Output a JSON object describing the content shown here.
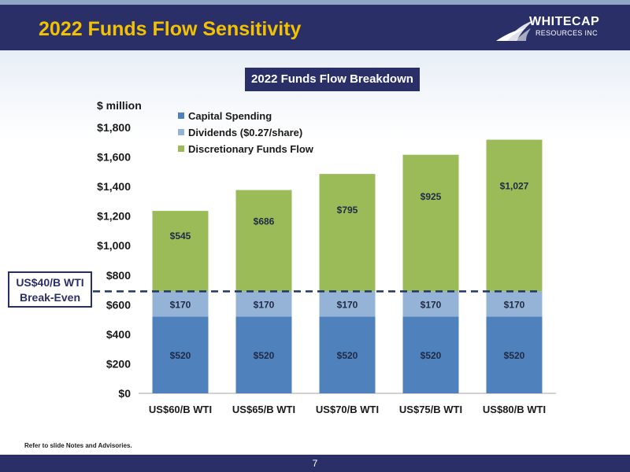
{
  "slide": {
    "title": "2022 Funds Flow Sensitivity",
    "logo_line1": "WHITECAP",
    "logo_line2": "RESOURCES INC",
    "callout_line1": "US$40/B WTI",
    "callout_line2": "Break-Even",
    "footnote": "Refer to slide Notes and Advisories.",
    "page_number": "7"
  },
  "colors": {
    "header": "#2b2f68",
    "title": "#f2c200",
    "capital": "#4f81bd",
    "dividends": "#95b3d7",
    "discretionary": "#9bbb59",
    "breakeven_line": "#1f3864"
  },
  "chart_data": {
    "type": "bar",
    "stacked": true,
    "title": "2022 Funds Flow Breakdown",
    "ylabel": "$ million",
    "xlabel": "",
    "ylim": [
      0,
      1800
    ],
    "yticks": [
      0,
      200,
      400,
      600,
      800,
      1000,
      1200,
      1400,
      1600,
      1800
    ],
    "ytick_labels": [
      "$0",
      "$200",
      "$400",
      "$600",
      "$800",
      "$1,000",
      "$1,200",
      "$1,400",
      "$1,600",
      "$1,800"
    ],
    "categories": [
      "US$60/B WTI",
      "US$65/B WTI",
      "US$70/B WTI",
      "US$75/B WTI",
      "US$80/B WTI"
    ],
    "series": [
      {
        "name": "Capital Spending",
        "values": [
          520,
          520,
          520,
          520,
          520
        ],
        "labels": [
          "$520",
          "$520",
          "$520",
          "$520",
          "$520"
        ],
        "color": "#4f81bd"
      },
      {
        "name": "Dividends ($0.27/share)",
        "values": [
          170,
          170,
          170,
          170,
          170
        ],
        "labels": [
          "$170",
          "$170",
          "$170",
          "$170",
          "$170"
        ],
        "color": "#95b3d7"
      },
      {
        "name": "Discretionary Funds Flow",
        "values": [
          545,
          686,
          795,
          925,
          1027
        ],
        "labels": [
          "$545",
          "$686",
          "$795",
          "$925",
          "$1,027"
        ],
        "color": "#9bbb59"
      }
    ],
    "reference_line": {
      "value": 690,
      "style": "dashed"
    },
    "legend_position": "top-left",
    "grid": false
  }
}
